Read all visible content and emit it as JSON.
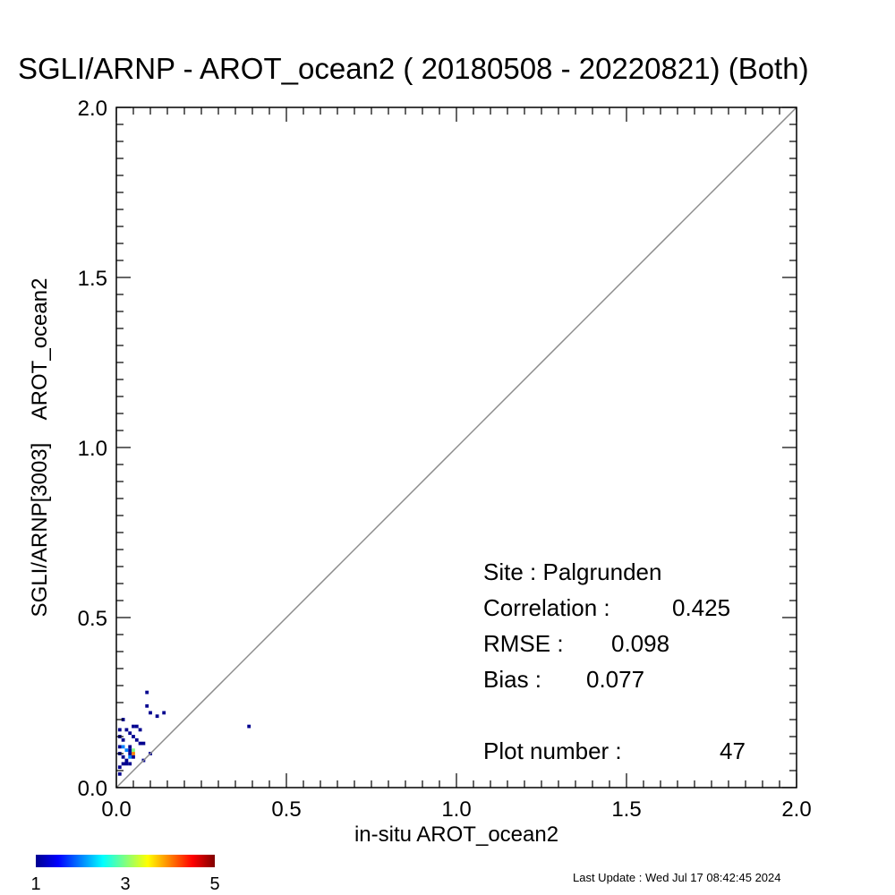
{
  "chart_data": {
    "type": "heatmap",
    "title": "SGLI/ARNP - AROT_ocean2 ( 20180508 - 20220821) (Both)",
    "xlabel": "in-situ AROT_ocean2",
    "ylabel": "SGLI/ARNP[3003]    AROT_ocean2",
    "xlim": [
      0.0,
      2.0
    ],
    "ylim": [
      0.0,
      2.0
    ],
    "x_ticks": [
      "0.0",
      "0.5",
      "1.0",
      "1.5",
      "2.0"
    ],
    "y_ticks": [
      "0.0",
      "0.5",
      "1.0",
      "1.5",
      "2.0"
    ],
    "one_to_one_line": true,
    "one_to_one_color": "#8c8c8c",
    "cell_size": 0.01,
    "grid": false,
    "colorbar": {
      "min": 1,
      "max": 5,
      "tick_labels": [
        "1",
        "3",
        "5"
      ],
      "colors": [
        "#00008f",
        "#0000ff",
        "#0080ff",
        "#00ffff",
        "#80ff80",
        "#ffff00",
        "#ff8000",
        "#ff0000",
        "#800000"
      ]
    },
    "stats": {
      "site": "Site : Palgrunden",
      "correlation_label": "Correlation :",
      "correlation_value": "0.425",
      "rmse_label": "RMSE :",
      "rmse_value": "0.098",
      "bias_label": "Bias :",
      "bias_value": "0.077",
      "plot_number_label": "Plot number :",
      "plot_number_value": "47"
    },
    "points": [
      {
        "x": 0.09,
        "y": 0.28,
        "count": 1
      },
      {
        "x": 0.09,
        "y": 0.24,
        "count": 1
      },
      {
        "x": 0.1,
        "y": 0.22,
        "count": 1
      },
      {
        "x": 0.14,
        "y": 0.22,
        "count": 1
      },
      {
        "x": 0.12,
        "y": 0.21,
        "count": 1
      },
      {
        "x": 0.02,
        "y": 0.2,
        "count": 1
      },
      {
        "x": 0.39,
        "y": 0.18,
        "count": 1
      },
      {
        "x": 0.01,
        "y": 0.17,
        "count": 1
      },
      {
        "x": 0.03,
        "y": 0.17,
        "count": 1
      },
      {
        "x": 0.05,
        "y": 0.18,
        "count": 1
      },
      {
        "x": 0.06,
        "y": 0.18,
        "count": 1
      },
      {
        "x": 0.04,
        "y": 0.16,
        "count": 1
      },
      {
        "x": 0.07,
        "y": 0.17,
        "count": 1
      },
      {
        "x": 0.01,
        "y": 0.15,
        "count": 1
      },
      {
        "x": 0.05,
        "y": 0.15,
        "count": 1
      },
      {
        "x": 0.02,
        "y": 0.14,
        "count": 1
      },
      {
        "x": 0.06,
        "y": 0.14,
        "count": 1
      },
      {
        "x": 0.08,
        "y": 0.13,
        "count": 1
      },
      {
        "x": 0.07,
        "y": 0.13,
        "count": 1
      },
      {
        "x": 0.01,
        "y": 0.12,
        "count": 1
      },
      {
        "x": 0.02,
        "y": 0.12,
        "count": 2
      },
      {
        "x": 0.04,
        "y": 0.12,
        "count": 1
      },
      {
        "x": 0.03,
        "y": 0.11,
        "count": 2
      },
      {
        "x": 0.04,
        "y": 0.11,
        "count": 1
      },
      {
        "x": 0.05,
        "y": 0.11,
        "count": 3
      },
      {
        "x": 0.01,
        "y": 0.1,
        "count": 1
      },
      {
        "x": 0.05,
        "y": 0.1,
        "count": 4
      },
      {
        "x": 0.04,
        "y": 0.1,
        "count": 1
      },
      {
        "x": 0.1,
        "y": 0.1,
        "count": 1
      },
      {
        "x": 0.02,
        "y": 0.09,
        "count": 1
      },
      {
        "x": 0.04,
        "y": 0.09,
        "count": 2
      },
      {
        "x": 0.05,
        "y": 0.09,
        "count": 1
      },
      {
        "x": 0.03,
        "y": 0.08,
        "count": 1
      },
      {
        "x": 0.08,
        "y": 0.08,
        "count": 1
      },
      {
        "x": 0.02,
        "y": 0.07,
        "count": 1
      },
      {
        "x": 0.03,
        "y": 0.07,
        "count": 1
      },
      {
        "x": 0.04,
        "y": 0.07,
        "count": 1
      },
      {
        "x": 0.01,
        "y": 0.06,
        "count": 1
      },
      {
        "x": 0.01,
        "y": 0.04,
        "count": 1
      }
    ]
  },
  "footer": {
    "last_update": "Last Update : Wed Jul 17 08:42:45 2024"
  }
}
